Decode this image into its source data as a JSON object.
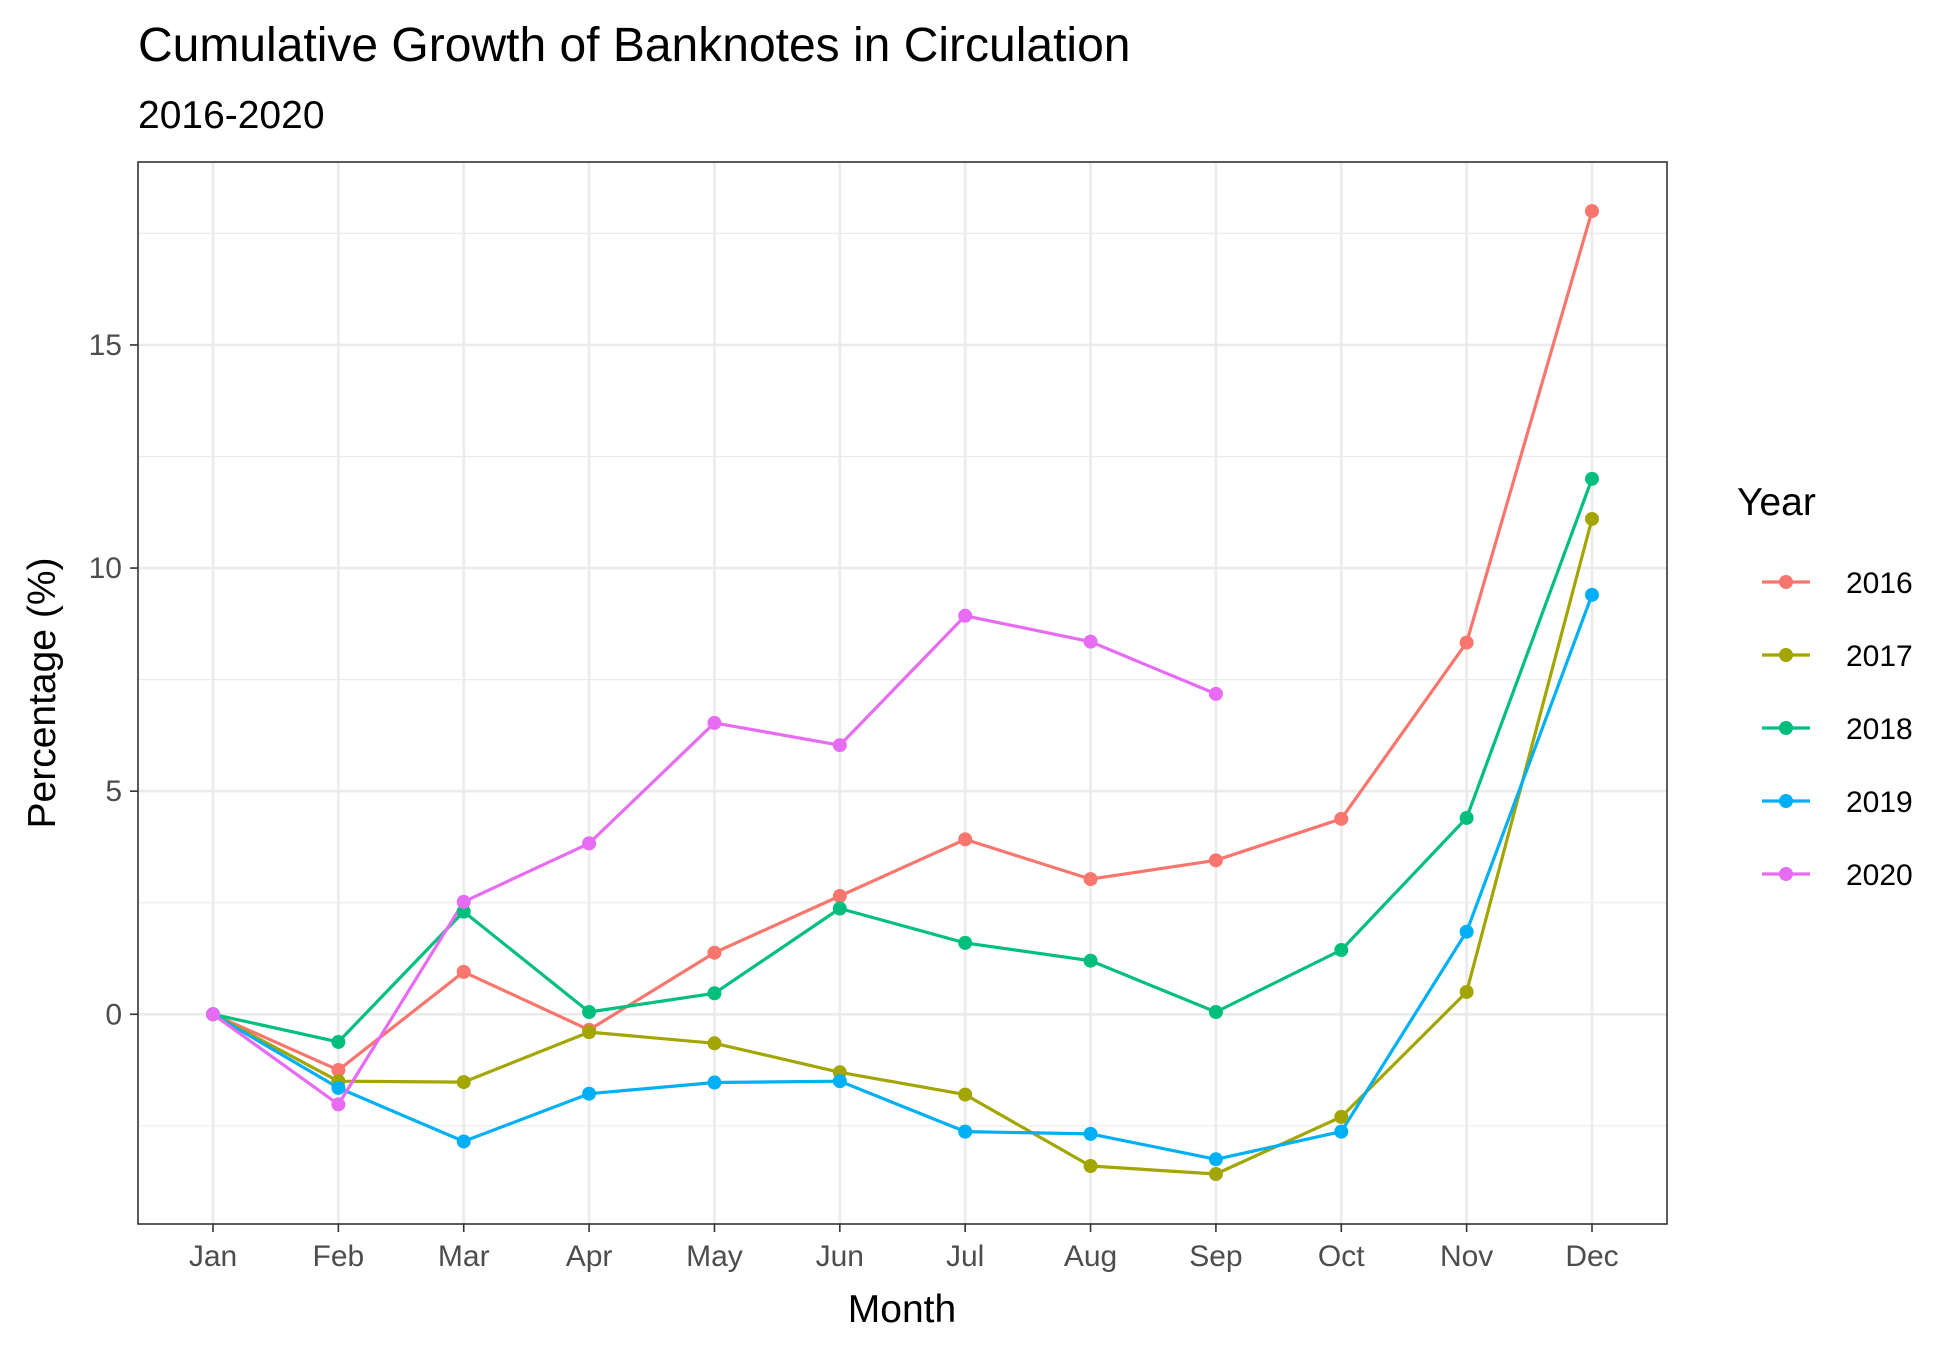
{
  "chart_data": {
    "type": "line",
    "title": "Cumulative Growth of Banknotes in Circulation",
    "subtitle": "2016-2020",
    "xlabel": "Month",
    "ylabel": "Percentage (%)",
    "categories": [
      "Jan",
      "Feb",
      "Mar",
      "Apr",
      "May",
      "Jun",
      "Jul",
      "Aug",
      "Sep",
      "Oct",
      "Nov",
      "Dec"
    ],
    "ylim": [
      -4.7,
      19.1
    ],
    "yticks": [
      0,
      5,
      10,
      15
    ],
    "ytick_labels": [
      "0",
      "5",
      "10",
      "15"
    ],
    "grid": true,
    "legend_title": "Year",
    "legend_position": "right",
    "series": [
      {
        "name": "2016",
        "color": "#F8766D",
        "values": [
          0,
          -1.25,
          0.95,
          -0.35,
          1.38,
          2.65,
          3.92,
          3.03,
          3.45,
          4.38,
          8.33,
          18.0
        ]
      },
      {
        "name": "2017",
        "color": "#A3A500",
        "values": [
          0,
          -1.5,
          -1.52,
          -0.4,
          -0.65,
          -1.3,
          -1.8,
          -3.4,
          -3.58,
          -2.3,
          0.5,
          11.1
        ]
      },
      {
        "name": "2018",
        "color": "#00BF7D",
        "values": [
          0,
          -0.62,
          2.3,
          0.05,
          0.47,
          2.37,
          1.6,
          1.2,
          0.05,
          1.44,
          4.4,
          12.0
        ]
      },
      {
        "name": "2019",
        "color": "#00B0F6",
        "values": [
          0,
          -1.65,
          -2.85,
          -1.78,
          -1.53,
          -1.5,
          -2.63,
          -2.68,
          -3.25,
          -2.63,
          1.85,
          9.4
        ]
      },
      {
        "name": "2020",
        "color": "#E76BF3",
        "values": [
          0,
          -2.02,
          2.52,
          3.83,
          6.53,
          6.03,
          8.93,
          8.35,
          7.18,
          null,
          null,
          null
        ]
      }
    ]
  }
}
